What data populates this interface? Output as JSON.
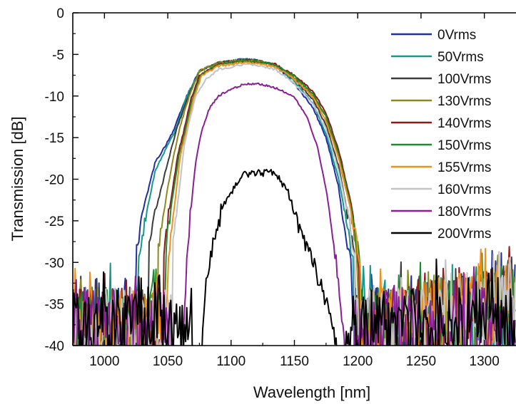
{
  "chart_data": {
    "type": "line",
    "title": "",
    "xlabel": "Wavelength [nm]",
    "ylabel": "Transmission [dB]",
    "xlim": [
      975,
      1325
    ],
    "ylim": [
      -40,
      0
    ],
    "x_ticks": [
      "1000",
      "1050",
      "1100",
      "1150",
      "1200",
      "1250",
      "1300"
    ],
    "y_ticks": [
      "0",
      "-5",
      "-10",
      "-15",
      "-20",
      "-25",
      "-30",
      "-35",
      "-40"
    ],
    "x_tick_values": [
      1000,
      1050,
      1100,
      1150,
      1200,
      1250,
      1300
    ],
    "y_tick_values": [
      0,
      -5,
      -10,
      -15,
      -20,
      -25,
      -30,
      -35,
      -40
    ],
    "grid": false,
    "legend_position": "top-right",
    "noise_floor_db": -35,
    "series": [
      {
        "name": "0Vrms",
        "color": "#1f2fa3",
        "x": [
          1025,
          1030,
          1040,
          1048,
          1055,
          1065,
          1075,
          1090,
          1110,
          1120,
          1135,
          1150,
          1165,
          1175,
          1185,
          1190,
          1195
        ],
        "y": [
          -29,
          -24,
          -18,
          -16,
          -14,
          -10,
          -7,
          -6,
          -5.6,
          -5.7,
          -6.3,
          -8.5,
          -11.5,
          -15,
          -21,
          -27,
          -30
        ]
      },
      {
        "name": "50Vrms",
        "color": "#12988c",
        "x": [
          1027,
          1032,
          1040,
          1048,
          1055,
          1065,
          1075,
          1090,
          1110,
          1120,
          1135,
          1150,
          1165,
          1175,
          1185,
          1192,
          1197
        ],
        "y": [
          -29,
          -25,
          -19,
          -16.5,
          -14.5,
          -10,
          -7,
          -6,
          -5.6,
          -5.7,
          -6.3,
          -8.2,
          -11,
          -14.5,
          -20,
          -26,
          -30
        ]
      },
      {
        "name": "100Vrms",
        "color": "#3c3c3c",
        "x": [
          1035,
          1040,
          1045,
          1050,
          1057,
          1065,
          1075,
          1090,
          1110,
          1120,
          1135,
          1150,
          1165,
          1175,
          1185,
          1193,
          1198
        ],
        "y": [
          -28,
          -24,
          -21,
          -18,
          -14,
          -10.5,
          -7,
          -6,
          -5.6,
          -5.7,
          -6.3,
          -8,
          -10.5,
          -13.5,
          -18.5,
          -25,
          -30
        ]
      },
      {
        "name": "130Vrms",
        "color": "#8a8b1c",
        "x": [
          1042,
          1046,
          1050,
          1055,
          1060,
          1067,
          1075,
          1090,
          1110,
          1120,
          1135,
          1150,
          1165,
          1175,
          1185,
          1195,
          1200
        ],
        "y": [
          -29,
          -25,
          -21,
          -17,
          -13.5,
          -10,
          -7,
          -6,
          -5.7,
          -5.8,
          -6.2,
          -7.8,
          -10,
          -12.5,
          -17.5,
          -24,
          -30
        ]
      },
      {
        "name": "140Vrms",
        "color": "#8b1a1a",
        "x": [
          1047,
          1050,
          1054,
          1058,
          1063,
          1068,
          1075,
          1090,
          1110,
          1120,
          1135,
          1150,
          1165,
          1175,
          1185,
          1195,
          1201
        ],
        "y": [
          -29,
          -25,
          -21,
          -17,
          -14,
          -10.5,
          -7.5,
          -6.2,
          -5.8,
          -5.9,
          -6.2,
          -7.5,
          -9.5,
          -12,
          -16.5,
          -23,
          -30
        ]
      },
      {
        "name": "150Vrms",
        "color": "#1c8a2e",
        "x": [
          1048,
          1051,
          1055,
          1059,
          1064,
          1069,
          1076,
          1090,
          1110,
          1120,
          1135,
          1150,
          1165,
          1175,
          1185,
          1195,
          1202
        ],
        "y": [
          -29,
          -25,
          -21,
          -17,
          -14,
          -10.5,
          -7.5,
          -6.2,
          -5.8,
          -5.9,
          -6.3,
          -7.6,
          -9.8,
          -12.5,
          -17,
          -23.5,
          -30
        ]
      },
      {
        "name": "155Vrms",
        "color": "#f0901a",
        "x": [
          1050,
          1053,
          1057,
          1060,
          1065,
          1070,
          1077,
          1090,
          1110,
          1120,
          1135,
          1150,
          1165,
          1175,
          1185,
          1195,
          1202
        ],
        "y": [
          -30,
          -26,
          -21,
          -17,
          -14,
          -10.5,
          -7.5,
          -6.4,
          -6,
          -6.1,
          -6.5,
          -8,
          -10.2,
          -13,
          -17.5,
          -24,
          -30
        ]
      },
      {
        "name": "160Vrms",
        "color": "#c4c4c4",
        "x": [
          1054,
          1057,
          1060,
          1063,
          1067,
          1072,
          1080,
          1090,
          1110,
          1120,
          1135,
          1150,
          1165,
          1175,
          1185,
          1193,
          1198
        ],
        "y": [
          -28,
          -24,
          -20,
          -16,
          -13,
          -10,
          -8,
          -6.8,
          -6.2,
          -6.3,
          -6.8,
          -8.5,
          -11,
          -14,
          -19,
          -25,
          -30
        ]
      },
      {
        "name": "180Vrms",
        "color": "#8a1e96",
        "x": [
          1062,
          1065,
          1068,
          1072,
          1077,
          1083,
          1090,
          1100,
          1110,
          1118,
          1128,
          1140,
          1150,
          1160,
          1168,
          1176,
          1183,
          1190
        ],
        "y": [
          -40,
          -30,
          -24,
          -18,
          -14,
          -11.5,
          -10,
          -9.2,
          -8.6,
          -8.5,
          -8.7,
          -9.3,
          -10.2,
          -12.5,
          -16,
          -22,
          -30,
          -40
        ]
      },
      {
        "name": "200Vrms",
        "color": "#000000",
        "x": [
          1077,
          1080,
          1085,
          1090,
          1095,
          1100,
          1105,
          1110,
          1120,
          1130,
          1138,
          1145,
          1152,
          1160,
          1167,
          1175,
          1180,
          1183
        ],
        "y": [
          -40,
          -33,
          -28,
          -25,
          -23,
          -21.5,
          -20.5,
          -19.5,
          -19.2,
          -19.2,
          -19.8,
          -21.5,
          -25,
          -28,
          -31,
          -34.5,
          -38,
          -40
        ]
      }
    ]
  }
}
